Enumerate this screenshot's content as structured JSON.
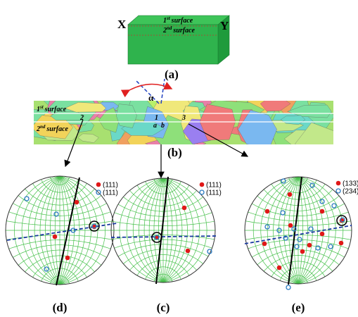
{
  "panel_a": {
    "label": "(a)",
    "x_label": "X",
    "y_label": "Y",
    "surface1": {
      "num": "1",
      "sup": "st",
      "word": "surface"
    },
    "surface2": {
      "num": "2",
      "sup": "nd",
      "word": "surface"
    }
  },
  "panel_b": {
    "label": "(b)",
    "angle": "α",
    "surface1": {
      "num": "1",
      "sup": "st",
      "word": "surface"
    },
    "surface2": {
      "num": "2",
      "sup": "nd",
      "word": "surface"
    },
    "markers": [
      "1",
      "2",
      "3",
      "a",
      "b"
    ]
  },
  "pole_figures": [
    {
      "label": "(d)",
      "legend": [
        "(111)",
        "(111)"
      ]
    },
    {
      "label": "(c)",
      "legend": [
        "(111)",
        "(111)"
      ]
    },
    {
      "label": "(e)",
      "legend": [
        "(133)",
        "(234)"
      ]
    }
  ]
}
